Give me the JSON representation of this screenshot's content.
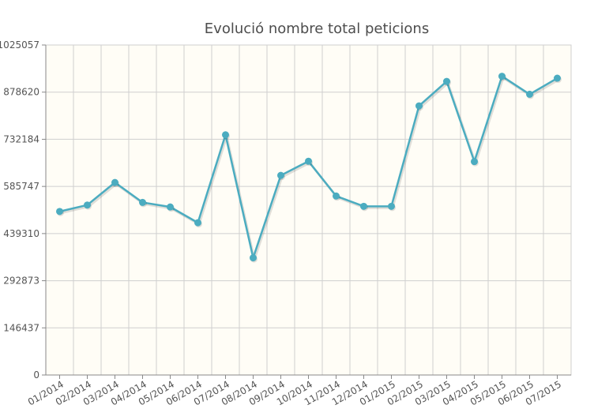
{
  "chart_data": {
    "type": "line",
    "title": "Evolució nombre total peticions",
    "xlabel": "",
    "ylabel": "",
    "categories": [
      "01/2014",
      "02/2014",
      "03/2014",
      "04/2014",
      "05/2014",
      "06/2014",
      "07/2014",
      "08/2014",
      "09/2014",
      "10/2014",
      "11/2014",
      "12/2014",
      "01/2015",
      "02/2015",
      "03/2015",
      "04/2015",
      "05/2015",
      "06/2015",
      "07/2015"
    ],
    "series": [
      {
        "values": [
          508000,
          528000,
          598000,
          536000,
          522000,
          473000,
          746000,
          364000,
          620000,
          664000,
          556000,
          524000,
          524000,
          836000,
          912000,
          663000,
          928000,
          872000,
          922000
        ]
      }
    ],
    "yticks": [
      "0",
      "146437",
      "292873",
      "439310",
      "585747",
      "732184",
      "878620",
      "1025057"
    ],
    "ylim": [
      0,
      1025057
    ],
    "grid": true,
    "colors": {
      "line": "#4bacc0",
      "plot_bg": "#fffdf6",
      "grid": "#cfcfcf",
      "axis": "#888888"
    }
  }
}
